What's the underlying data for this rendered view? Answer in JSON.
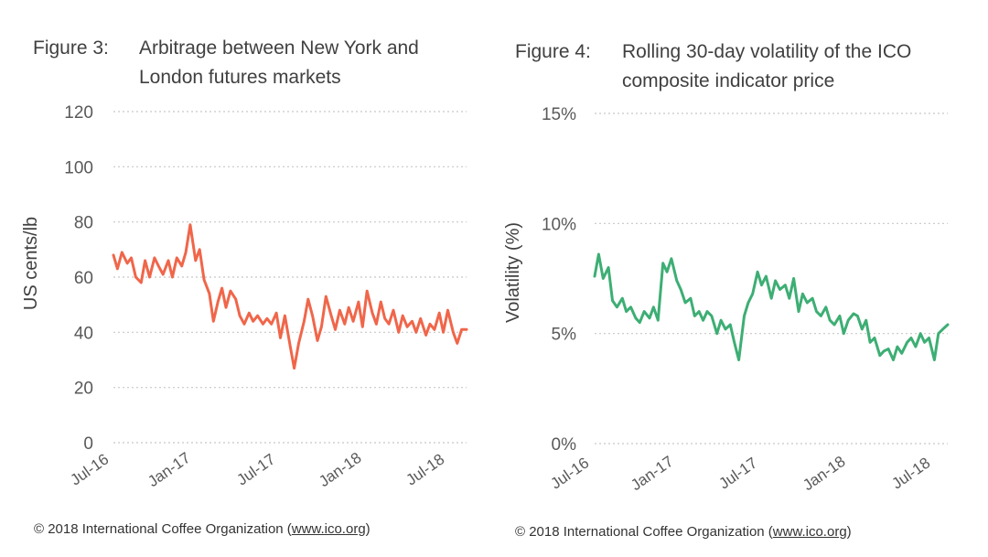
{
  "figures": [
    {
      "number": "Figure 3:",
      "title_lines": [
        "Arbitrage between New York and",
        "London futures markets"
      ],
      "copyright": "© 2018 International Coffee Organization (",
      "copyright_site": "www.ico.org",
      "copyright_end": ")",
      "line_color": "#F0664A"
    },
    {
      "number": "Figure 4:",
      "title_lines": [
        "Rolling 30-day volatility of the ICO",
        "composite indicator price"
      ],
      "copyright": "© 2018 International Coffee Organization (",
      "copyright_site": "www.ico.org",
      "copyright_end": ")",
      "line_color": "#3DAE74"
    }
  ],
  "chart_data": [
    {
      "type": "line",
      "title": "Arbitrage between New York and London futures markets",
      "ylabel": "US cents/lb",
      "xlabel": "",
      "ylim": [
        0,
        120
      ],
      "yticks": [
        0,
        20,
        40,
        60,
        80,
        100,
        120
      ],
      "ytick_labels": [
        "0",
        "20",
        "40",
        "60",
        "80",
        "100",
        "120"
      ],
      "xtick_labels": [
        "Jul-16",
        "Jan-17",
        "Jul-17",
        "Jan-18",
        "Jul-18"
      ],
      "xlim": [
        "2016-07-01",
        "2018-08-31"
      ],
      "grid": "horizontal dotted",
      "legend": "none",
      "series": [
        {
          "color": "#F0664A",
          "x": [
            "2016-07-01",
            "2016-07-10",
            "2016-07-20",
            "2016-08-01",
            "2016-08-10",
            "2016-08-20",
            "2016-09-01",
            "2016-09-10",
            "2016-09-20",
            "2016-10-01",
            "2016-10-10",
            "2016-10-20",
            "2016-11-01",
            "2016-11-10",
            "2016-11-20",
            "2016-12-01",
            "2016-12-10",
            "2016-12-20",
            "2017-01-01",
            "2017-01-10",
            "2017-01-20",
            "2017-02-01",
            "2017-02-10",
            "2017-02-20",
            "2017-03-01",
            "2017-03-10",
            "2017-03-20",
            "2017-04-01",
            "2017-04-10",
            "2017-04-20",
            "2017-05-01",
            "2017-05-10",
            "2017-05-20",
            "2017-06-01",
            "2017-06-10",
            "2017-06-20",
            "2017-07-01",
            "2017-07-10",
            "2017-07-20",
            "2017-08-01",
            "2017-08-10",
            "2017-08-20",
            "2017-09-01",
            "2017-09-10",
            "2017-09-20",
            "2017-10-01",
            "2017-10-10",
            "2017-10-20",
            "2017-11-01",
            "2017-11-10",
            "2017-11-20",
            "2017-12-01",
            "2017-12-10",
            "2017-12-20",
            "2018-01-01",
            "2018-01-10",
            "2018-01-20",
            "2018-02-01",
            "2018-02-10",
            "2018-02-20",
            "2018-03-01",
            "2018-03-10",
            "2018-03-20",
            "2018-04-01",
            "2018-04-10",
            "2018-04-20",
            "2018-05-01",
            "2018-05-10",
            "2018-05-20",
            "2018-06-01",
            "2018-06-10",
            "2018-06-20",
            "2018-07-01",
            "2018-07-10",
            "2018-07-20",
            "2018-08-01",
            "2018-08-10",
            "2018-08-20",
            "2018-08-31"
          ],
          "y": [
            68,
            63,
            69,
            65,
            67,
            60,
            58,
            66,
            60,
            67,
            64,
            61,
            66,
            60,
            67,
            64,
            69,
            79,
            66,
            70,
            59,
            54,
            44,
            51,
            56,
            49,
            55,
            52,
            46,
            43,
            47,
            44,
            46,
            43,
            45,
            43,
            47,
            38,
            46,
            35,
            27,
            36,
            44,
            52,
            46,
            37,
            42,
            53,
            46,
            41,
            48,
            43,
            49,
            44,
            51,
            42,
            55,
            47,
            43,
            51,
            45,
            43,
            48,
            40,
            46,
            42,
            44,
            40,
            45,
            39,
            43,
            41,
            47,
            40,
            48,
            40,
            36,
            41,
            41
          ]
        }
      ]
    },
    {
      "type": "line",
      "title": "Rolling 30-day volatility of the ICO composite indicator price",
      "ylabel": "Volatility (%)",
      "xlabel": "",
      "ylim": [
        0,
        15
      ],
      "yticks": [
        0,
        5,
        10,
        15
      ],
      "ytick_labels": [
        "0%",
        "5%",
        "10%",
        "15%"
      ],
      "xtick_labels": [
        "Jul-16",
        "Jan-17",
        "Jul-17",
        "Jan-18",
        "Jul-18"
      ],
      "xlim": [
        "2016-07-01",
        "2018-08-31"
      ],
      "grid": "horizontal dotted",
      "legend": "none",
      "series": [
        {
          "color": "#3DAE74",
          "x": [
            "2016-07-01",
            "2016-07-10",
            "2016-07-20",
            "2016-08-01",
            "2016-08-10",
            "2016-08-20",
            "2016-09-01",
            "2016-09-10",
            "2016-09-20",
            "2016-10-01",
            "2016-10-10",
            "2016-10-20",
            "2016-11-01",
            "2016-11-10",
            "2016-11-20",
            "2016-12-01",
            "2016-12-10",
            "2016-12-20",
            "2017-01-01",
            "2017-01-10",
            "2017-01-20",
            "2017-02-01",
            "2017-02-10",
            "2017-02-20",
            "2017-03-01",
            "2017-03-10",
            "2017-03-20",
            "2017-04-01",
            "2017-04-10",
            "2017-04-20",
            "2017-05-01",
            "2017-05-10",
            "2017-05-20",
            "2017-06-01",
            "2017-06-10",
            "2017-06-20",
            "2017-07-01",
            "2017-07-10",
            "2017-07-20",
            "2017-08-01",
            "2017-08-10",
            "2017-08-20",
            "2017-09-01",
            "2017-09-10",
            "2017-09-20",
            "2017-10-01",
            "2017-10-10",
            "2017-10-20",
            "2017-11-01",
            "2017-11-10",
            "2017-11-20",
            "2017-12-01",
            "2017-12-10",
            "2017-12-20",
            "2018-01-01",
            "2018-01-10",
            "2018-01-20",
            "2018-02-01",
            "2018-02-10",
            "2018-02-20",
            "2018-03-01",
            "2018-03-10",
            "2018-03-20",
            "2018-04-01",
            "2018-04-10",
            "2018-04-20",
            "2018-05-01",
            "2018-05-10",
            "2018-05-20",
            "2018-06-01",
            "2018-06-10",
            "2018-06-20",
            "2018-07-01",
            "2018-07-10",
            "2018-07-20",
            "2018-08-01",
            "2018-08-10",
            "2018-08-20",
            "2018-08-31"
          ],
          "y": [
            7.6,
            8.6,
            7.5,
            8.0,
            6.5,
            6.2,
            6.6,
            6.0,
            6.2,
            5.7,
            5.5,
            6.0,
            5.7,
            6.2,
            5.6,
            8.2,
            7.8,
            8.4,
            7.4,
            7.0,
            6.4,
            6.6,
            5.8,
            6.0,
            5.6,
            6.0,
            5.8,
            5.0,
            5.6,
            5.2,
            5.4,
            4.6,
            3.8,
            5.8,
            6.4,
            6.8,
            7.8,
            7.2,
            7.6,
            6.6,
            7.4,
            7.0,
            7.2,
            6.6,
            7.5,
            6.0,
            6.8,
            6.4,
            6.6,
            6.0,
            5.8,
            6.2,
            5.6,
            5.4,
            5.8,
            5.0,
            5.6,
            5.9,
            5.8,
            5.2,
            5.6,
            4.6,
            4.8,
            4.0,
            4.2,
            4.3,
            3.8,
            4.4,
            4.1,
            4.6,
            4.8,
            4.4,
            5.0,
            4.6,
            4.8,
            3.8,
            5.0,
            5.2,
            5.4
          ]
        }
      ]
    }
  ]
}
